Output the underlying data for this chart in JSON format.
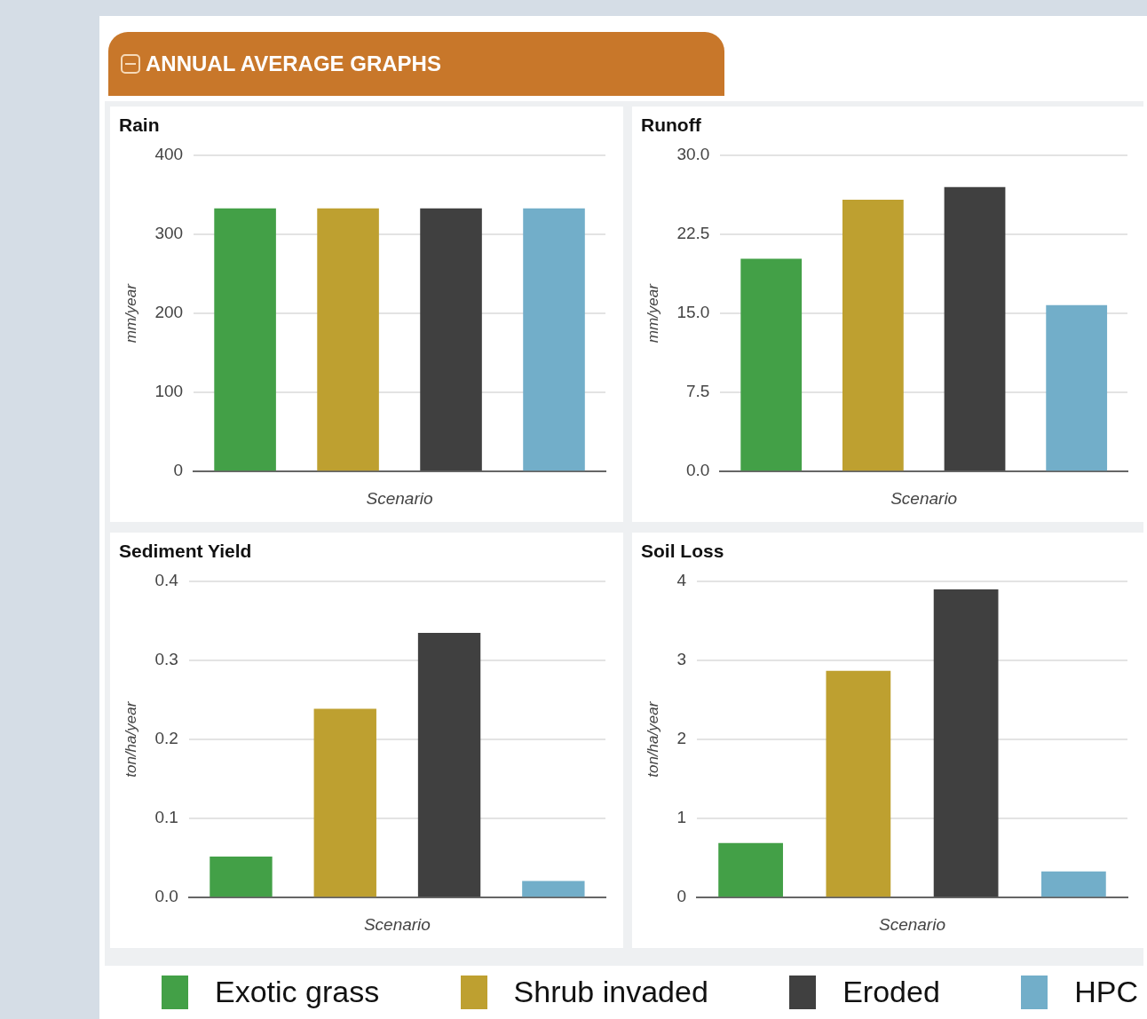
{
  "chart_data": [
    {
      "type": "bar",
      "title": "Rain",
      "xlabel": "Scenario",
      "ylabel": "mm/year",
      "annotations": [
        "ANNUAL AVERAGE GRAPHS"
      ],
      "categories": [
        null
      ],
      "series": [
        {
          "name": "Exotic grass",
          "color": "#43a047",
          "values": [
            333
          ]
        },
        {
          "name": "Shrub invaded",
          "color": "#bea030",
          "values": [
            333
          ]
        },
        {
          "name": "Eroded",
          "color": "#404040",
          "values": [
            333
          ]
        },
        {
          "name": "HPC",
          "color": "#72aec9",
          "values": [
            333
          ]
        }
      ],
      "ylim": [
        0,
        400
      ],
      "yticks": [
        0,
        100,
        200,
        300,
        400
      ],
      "grid": "y",
      "legend": "bottom",
      "tick_labels": "y"
    },
    {
      "type": "bar",
      "title": "Runoff",
      "xlabel": "Scenario",
      "ylabel": "mm/year",
      "categories": [
        null
      ],
      "series": [
        {
          "name": "Exotic grass",
          "color": "#43a047",
          "values": [
            20.2
          ]
        },
        {
          "name": "Shrub invaded",
          "color": "#bea030",
          "values": [
            25.8
          ]
        },
        {
          "name": "Eroded",
          "color": "#404040",
          "values": [
            27.0
          ]
        },
        {
          "name": "HPC",
          "color": "#72aec9",
          "values": [
            15.8
          ]
        }
      ],
      "ylim": [
        0,
        30
      ],
      "yticks": [
        {
          "value": 0,
          "label": "0.0"
        },
        7.5,
        {
          "value": 15,
          "label": "15.0"
        },
        22.5,
        {
          "value": 30,
          "label": "30.0"
        }
      ],
      "grid": "y",
      "legend": "bottom",
      "tick_labels": "y"
    },
    {
      "type": "bar",
      "title": "Sediment Yield",
      "xlabel": "Scenario",
      "ylabel": "ton/ha/year",
      "categories": [
        null
      ],
      "series": [
        {
          "name": "Exotic grass",
          "color": "#43a047",
          "values": [
            0.052
          ]
        },
        {
          "name": "Shrub invaded",
          "color": "#bea030",
          "values": [
            0.239
          ]
        },
        {
          "name": "Eroded",
          "color": "#404040",
          "values": [
            0.335
          ]
        },
        {
          "name": "HPC",
          "color": "#72aec9",
          "values": [
            0.021
          ]
        }
      ],
      "ylim": [
        0,
        0.4
      ],
      "yticks": [
        {
          "value": 0,
          "label": "0.0"
        },
        0.1,
        0.2,
        0.3,
        0.4
      ],
      "grid": "y",
      "legend": "bottom",
      "tick_labels": "y"
    },
    {
      "type": "bar",
      "title": "Soil Loss",
      "xlabel": "Scenario",
      "ylabel": "ton/ha/year",
      "categories": [
        null
      ],
      "series": [
        {
          "name": "Exotic grass",
          "color": "#43a047",
          "values": [
            0.69
          ]
        },
        {
          "name": "Shrub invaded",
          "color": "#bea030",
          "values": [
            2.87
          ]
        },
        {
          "name": "Eroded",
          "color": "#404040",
          "values": [
            3.9
          ]
        },
        {
          "name": "HPC",
          "color": "#72aec9",
          "values": [
            0.33
          ]
        }
      ],
      "ylim": [
        0,
        4
      ],
      "yticks": [
        0,
        1,
        2,
        3,
        4
      ],
      "grid": "y",
      "legend": "bottom",
      "tick_labels": "y"
    }
  ]
}
